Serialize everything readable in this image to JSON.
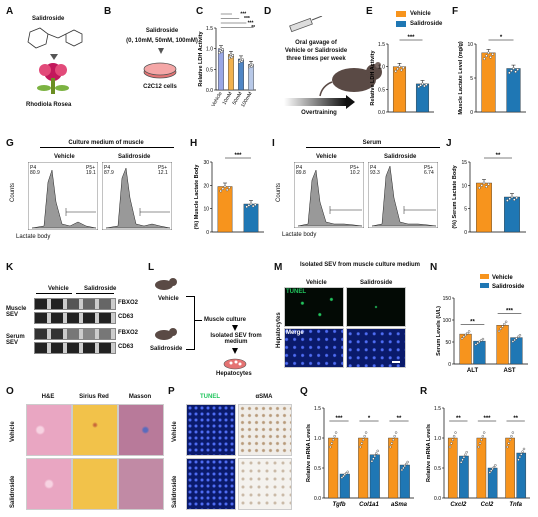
{
  "colors": {
    "vehicle": "#f7941d",
    "salidroside": "#1f77b4",
    "tunel": "#22c55e",
    "tunel_bg": "#0a1a6b",
    "he": "#e9a6c2",
    "sirius": "#f2c24a",
    "masson": "#b87a9a",
    "asma": "#f0ede8"
  },
  "panelA": {
    "letter": "A",
    "compound": "Salidroside",
    "plant": "Rhodiola Rosea"
  },
  "panelB": {
    "letter": "B",
    "line1": "Salidroside",
    "line2": "(0, 10mM, 50mM, 100mM)",
    "cells": "C2C12 cells"
  },
  "panelD": {
    "letter": "D",
    "line1": "Oral gavage of",
    "line2": "Vehicle or Salidroside",
    "line3": "three times per week",
    "arrow_label": "Overtraining"
  },
  "panelG": {
    "letter": "G",
    "title": "Culture medium of muscle",
    "left_group": "Vehicle",
    "right_group": "Salidroside",
    "left_p4": "P4\n80.9",
    "left_p5": "P5+\n19.1",
    "right_p4": "P4\n87.9",
    "right_p5": "P5+\n12.1",
    "xlabel": "Lactate body",
    "ylabel": "Counts"
  },
  "panelI": {
    "letter": "I",
    "title": "Serum",
    "left_group": "Vehicle",
    "right_group": "Salidroside",
    "left_p4": "P4\n89.8",
    "left_p5": "P5+\n10.2",
    "right_p4": "P4\n93.3",
    "right_p5": "P5+\n6.74",
    "xlabel": "Lactate body",
    "ylabel": "Counts"
  },
  "panelK": {
    "letter": "K",
    "header_vehicle": "Vehicle",
    "header_salidroside": "Salidroside",
    "row1_group": "Muscle SEV",
    "row2_group": "Serum SEV",
    "row1_bands": [
      "FBXO2",
      "CD63"
    ],
    "row2_bands": [
      "FBXO2",
      "CD63"
    ]
  },
  "panelL": {
    "letter": "L",
    "vehicle": "Vehicle",
    "salidroside": "Salidroside",
    "step1": "Muscle culture",
    "step2": "Isolated SEV from medium",
    "step3": "Hepatocytes"
  },
  "panelM": {
    "letter": "M",
    "title": "Isolated SEV from muscle culture medium",
    "col1": "Vehicle",
    "col2": "Salidroside",
    "row_label": "Hepatocytes",
    "row1": "TUNEL",
    "row2": "Merge"
  },
  "panelO": {
    "letter": "O",
    "cols": [
      "H&E",
      "Sirius Red",
      "Masson"
    ],
    "rows": [
      "Vehicle",
      "Salidroside"
    ]
  },
  "panelP": {
    "letter": "P",
    "col1": "TUNEL",
    "col2": "αSMA",
    "rows": [
      "Vehicle",
      "Salidroside"
    ]
  },
  "legend": {
    "vehicle": "Vehicle",
    "salidroside": "Salidroside"
  },
  "chart_data": [
    {
      "id": "C",
      "type": "bar",
      "ylabel": "Relative LDH Activity",
      "ylim": [
        0,
        1.5
      ],
      "yticks": [
        "0.0",
        "0.5",
        "1.0",
        "1.5"
      ],
      "categories": [
        "Vehicle",
        "10mM",
        "50mM",
        "100mM"
      ],
      "values": [
        1.0,
        0.86,
        0.75,
        0.62
      ],
      "colors": [
        "#9aa8e6",
        "#f2b24f",
        "#4f86c6",
        "#b8c9e8"
      ],
      "sig": [
        "***",
        "***",
        "***",
        "**"
      ]
    },
    {
      "id": "E",
      "type": "bar",
      "ylabel": "Relative LDH Activity",
      "ylim": [
        0,
        1.5
      ],
      "yticks": [
        "0.0",
        "0.5",
        "1.0",
        "1.5"
      ],
      "categories": [
        "Vehicle",
        "Salidroside"
      ],
      "values": [
        1.0,
        0.62
      ],
      "sig": [
        "***"
      ]
    },
    {
      "id": "F",
      "type": "bar",
      "ylabel": "Muscle Lactate Level (mg/g)",
      "ylim": [
        0,
        10
      ],
      "yticks": [
        "0",
        "5",
        "10"
      ],
      "categories": [
        "Vehicle",
        "Salidroside"
      ],
      "values": [
        8.7,
        6.4
      ],
      "sig": [
        "*"
      ]
    },
    {
      "id": "H",
      "type": "bar",
      "ylabel": "(%) Muscle Lactate Body",
      "ylim": [
        0,
        30
      ],
      "yticks": [
        "0",
        "10",
        "20",
        "30"
      ],
      "categories": [
        "Vehicle",
        "Salidroside"
      ],
      "values": [
        19.5,
        12.0
      ],
      "sig": [
        "***"
      ]
    },
    {
      "id": "J",
      "type": "bar",
      "ylabel": "(%) Serum Lactate Body",
      "ylim": [
        0,
        15
      ],
      "yticks": [
        "0",
        "5",
        "10",
        "15"
      ],
      "categories": [
        "Vehicle",
        "Salidroside"
      ],
      "values": [
        10.5,
        7.5
      ],
      "sig": [
        "**"
      ]
    },
    {
      "id": "N",
      "type": "bar",
      "ylabel": "Serum Levels (U/L)",
      "ylim": [
        0,
        150
      ],
      "yticks": [
        "0",
        "50",
        "100",
        "150"
      ],
      "categories": [
        "ALT",
        "AST"
      ],
      "series": [
        {
          "name": "Vehicle",
          "values": [
            68,
            88
          ]
        },
        {
          "name": "Salidroside",
          "values": [
            52,
            60
          ]
        }
      ],
      "sig": [
        "**",
        "***"
      ],
      "legend": "top-right"
    },
    {
      "id": "Q",
      "type": "bar",
      "ylabel": "Relative mRNA Levels",
      "ylim": [
        0,
        1.5
      ],
      "yticks": [
        "0.0",
        "0.5",
        "1.0",
        "1.5"
      ],
      "categories": [
        "Tgfb",
        "Col1a1",
        "aSma"
      ],
      "series": [
        {
          "name": "Vehicle",
          "values": [
            1.0,
            1.0,
            1.0
          ]
        },
        {
          "name": "Salidroside",
          "values": [
            0.4,
            0.72,
            0.55
          ]
        }
      ],
      "sig": [
        "***",
        "*",
        "**"
      ]
    },
    {
      "id": "R",
      "type": "bar",
      "ylabel": "Relative mRNA Levels",
      "ylim": [
        0,
        1.5
      ],
      "yticks": [
        "0.0",
        "0.5",
        "1.0",
        "1.5"
      ],
      "categories": [
        "Cxcl2",
        "Ccl2",
        "Tnfa"
      ],
      "series": [
        {
          "name": "Vehicle",
          "values": [
            1.0,
            1.0,
            1.0
          ]
        },
        {
          "name": "Salidroside",
          "values": [
            0.7,
            0.5,
            0.75
          ]
        }
      ],
      "sig": [
        "**",
        "***",
        "**"
      ]
    }
  ]
}
